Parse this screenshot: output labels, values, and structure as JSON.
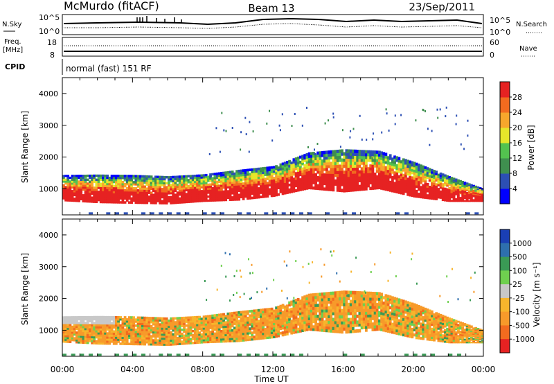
{
  "header": {
    "station": "McMurdo (fitACF)",
    "beam": "Beam 13",
    "date": "23/Sep/2011"
  },
  "top_panel": {
    "left_label": "N.Sky",
    "right_label": "N.Search",
    "left_ticks": [
      "10^5",
      "10^0"
    ],
    "right_ticks": [
      "10^5",
      "10^0"
    ]
  },
  "freq_panel": {
    "left_label_1": "Freq.",
    "left_label_2": "[MHz]",
    "right_label": "Nave",
    "left_ticks": [
      "18",
      "8"
    ],
    "right_ticks": [
      "60",
      "0"
    ]
  },
  "cpid": {
    "label": "CPID",
    "value": "normal (fast) 151 RF"
  },
  "x_axis": {
    "ticks": [
      "00:00",
      "04:00",
      "08:00",
      "12:00",
      "16:00",
      "20:00",
      "00:00"
    ],
    "label": "Time UT"
  },
  "power_panel": {
    "ylabel": "Slant Range [km]",
    "yticks": [
      "4000",
      "3000",
      "2000",
      "1000"
    ],
    "colorbar_label": "Power [dB]",
    "colorbar_ticks": [
      "28",
      "24",
      "20",
      "16",
      "12",
      "8",
      "4"
    ],
    "colors": [
      "#0000ff",
      "#2c4fb4",
      "#3f8f4f",
      "#53c24f",
      "#e6e62a",
      "#f7a72c",
      "#f26b1f",
      "#e62222"
    ]
  },
  "velocity_panel": {
    "ylabel": "Slant Range [km]",
    "yticks": [
      "4000",
      "3000",
      "2000",
      "1000"
    ],
    "colorbar_label": "Velocity [m s⁻¹]",
    "colorbar_ticks": [
      "1000",
      "500",
      "100",
      "25",
      "-25",
      "-100",
      "-500",
      "-1000"
    ],
    "colors": [
      "#1a3fb4",
      "#2e6fae",
      "#3a9a55",
      "#6fd04f",
      "#c8c8c8",
      "#f7b52c",
      "#f79a2a",
      "#f26b1f",
      "#e62222"
    ]
  },
  "chart_data": {
    "type": "heatmap",
    "xlabel": "Time UT",
    "ylabel": "Slant Range [km]",
    "x_range": [
      "00:00",
      "24:00"
    ],
    "y_range": [
      180,
      4500
    ],
    "echo_band": {
      "hours": [
        0,
        2,
        4,
        6,
        8,
        10,
        12,
        14,
        16,
        18,
        20,
        22,
        24
      ],
      "lower_km": [
        620,
        560,
        540,
        520,
        600,
        640,
        760,
        1000,
        900,
        1000,
        740,
        600,
        600
      ],
      "upper_km": [
        1440,
        1450,
        1440,
        1400,
        1460,
        1600,
        1720,
        2150,
        2250,
        2200,
        1850,
        1400,
        1000
      ]
    },
    "power_db_range": [
      0,
      32
    ],
    "velocity_ms_range": [
      -1000,
      1000
    ]
  }
}
